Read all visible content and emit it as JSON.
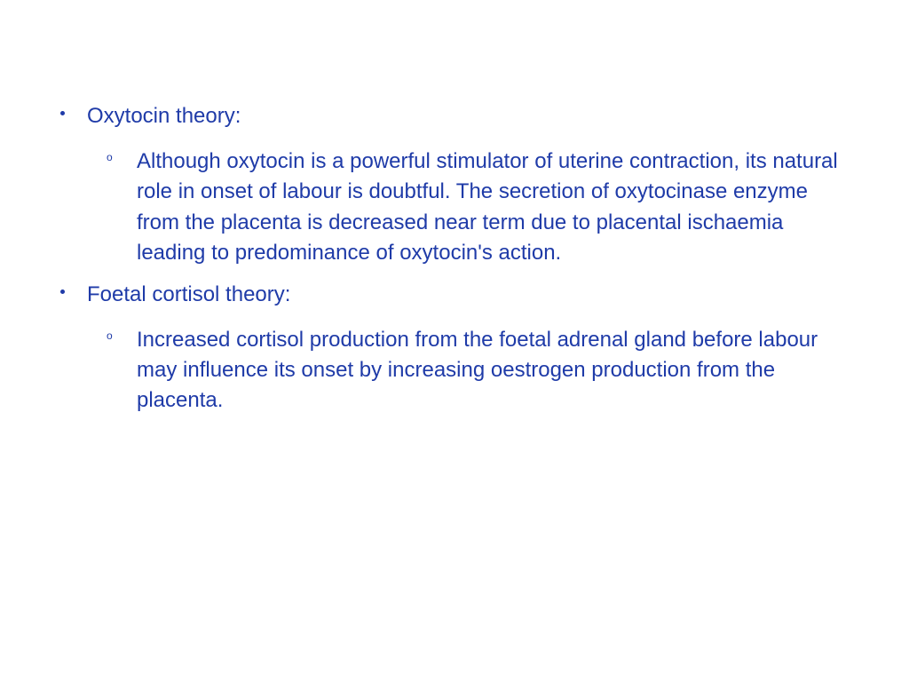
{
  "slide": {
    "background_color": "#ffffff",
    "text_color": "#1f3ba8",
    "font_family": "Arial, Helvetica, sans-serif",
    "outer_fontsize": 24,
    "inner_fontsize": 24,
    "items": [
      {
        "label": "Oxytocin theory:",
        "sub": [
          "Although oxytocin is a powerful stimulator of uterine contraction, its natural role in onset of labour is doubtful. The secretion of oxytocinase enzyme from the placenta is decreased near term due to placental ischaemia leading to predominance of oxytocin's action."
        ]
      },
      {
        "label": "Foetal cortisol theory:",
        "sub": [
          "Increased cortisol production from the foetal adrenal gland before labour may influence its onset by increasing oestrogen production from the placenta."
        ]
      }
    ],
    "inner_bullet_glyph": "o"
  }
}
